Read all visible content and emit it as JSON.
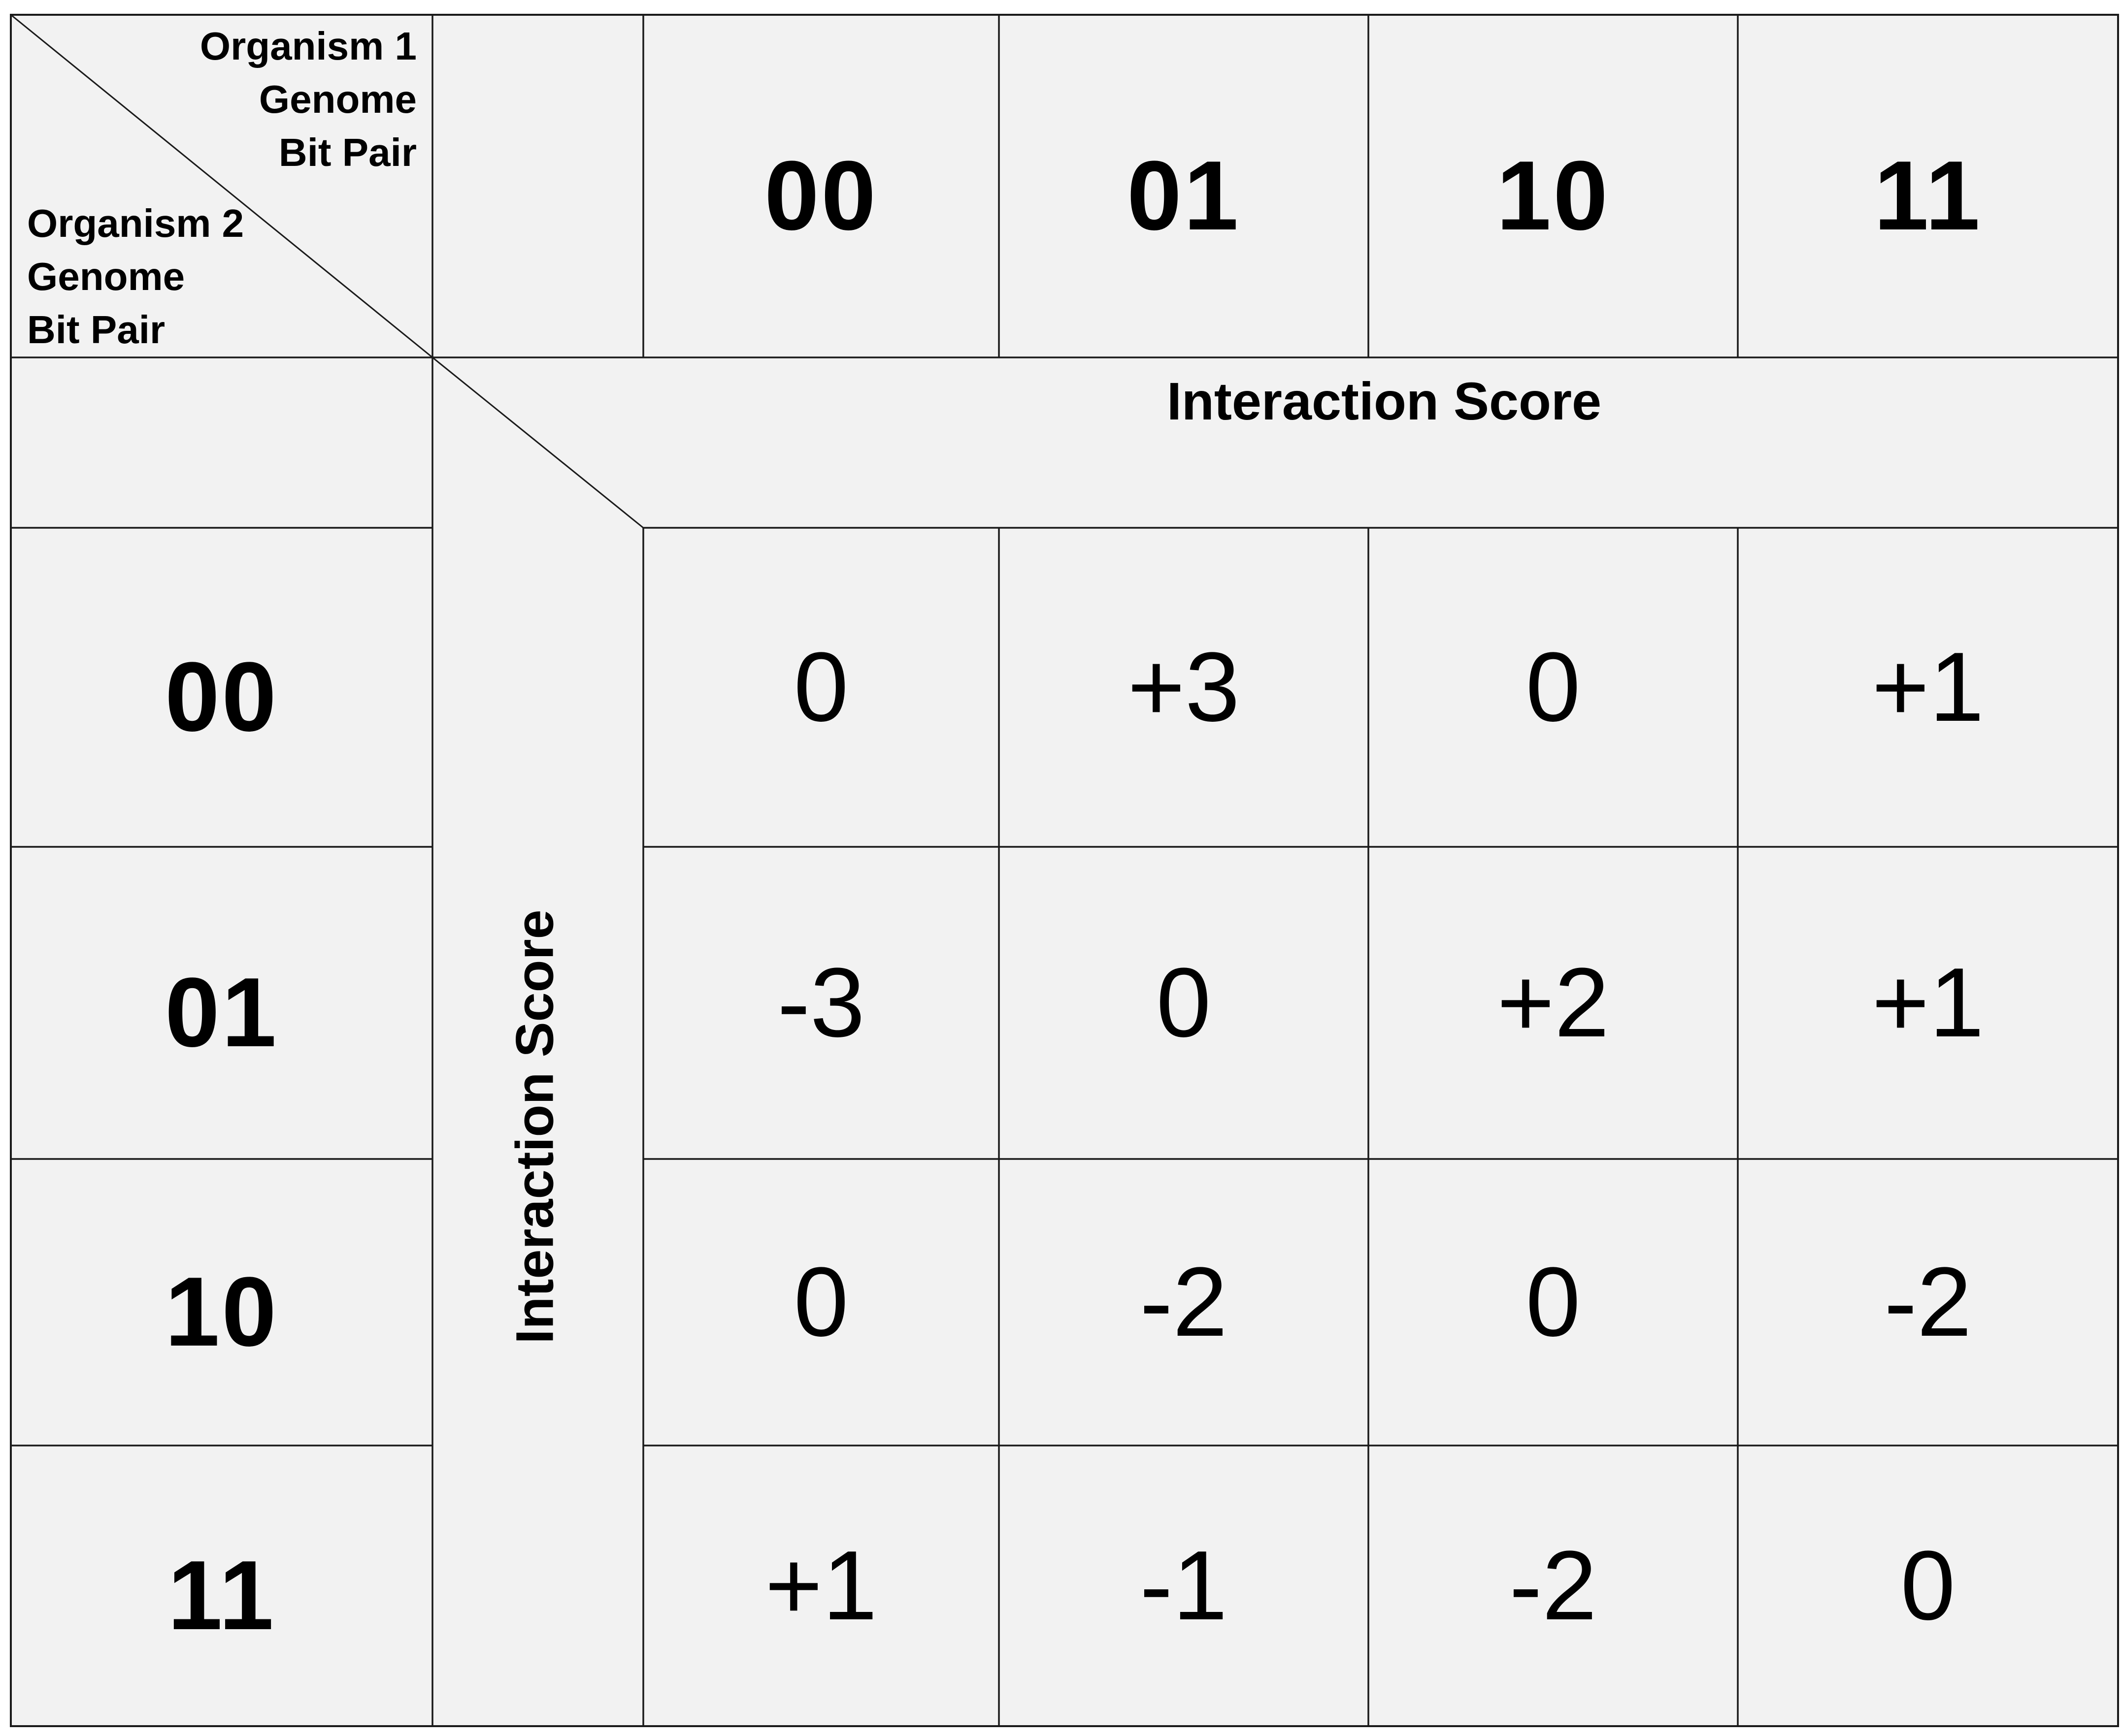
{
  "corner": {
    "organism1_label": "Organism 1\nGenome\nBit Pair",
    "organism2_label": "Organism 2\nGenome\nBit Pair"
  },
  "column_headers": [
    "00",
    "01",
    "10",
    "11"
  ],
  "row_headers": [
    "00",
    "01",
    "10",
    "11"
  ],
  "top_axis_label": "Interaction Score",
  "left_axis_label": "Interaction Score",
  "scores": [
    [
      "0",
      "+3",
      "0",
      "+1"
    ],
    [
      "-3",
      "0",
      "+2",
      "+1"
    ],
    [
      "0",
      "-2",
      "0",
      "-2"
    ],
    [
      "+1",
      "-1",
      "-2",
      "0"
    ]
  ],
  "colors": {
    "cell_fill": "#f2f2f2",
    "grid_line": "#1a1a1a",
    "text": "#000000"
  }
}
